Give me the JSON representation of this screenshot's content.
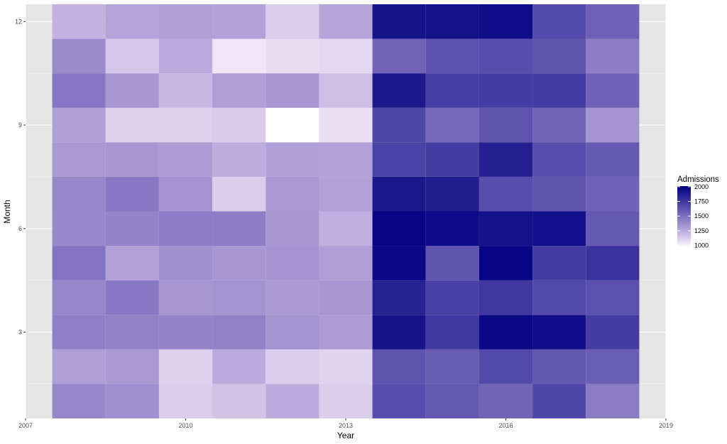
{
  "chart_data": {
    "type": "heatmap",
    "title": "",
    "xlabel": "Year",
    "ylabel": "Month",
    "x_ticks": [
      "2007",
      "2010",
      "2013",
      "2016",
      "2019"
    ],
    "y_ticks": [
      "3",
      "6",
      "9",
      "12"
    ],
    "xlim": [
      2007,
      2019
    ],
    "ylim": [
      0.5,
      12.5
    ],
    "grid": true,
    "legend": {
      "title": "Admissions",
      "position": "right",
      "breaks": [
        "2000",
        "1750",
        "1500",
        "1250",
        "1000"
      ],
      "range": [
        970,
        2010
      ],
      "low_color": "#ffffff",
      "high_color": "#000080"
    },
    "years": [
      2008,
      2009,
      2010,
      2011,
      2012,
      2013,
      2014,
      2015,
      2016,
      2017,
      2018
    ],
    "months": [
      1,
      2,
      3,
      4,
      5,
      6,
      7,
      8,
      9,
      10,
      11,
      12
    ],
    "values": [
      [
        1400,
        1300,
        1430,
        1400,
        1480,
        1390,
        1400,
        1320,
        1300,
        1470,
        1380,
        1220
      ],
      [
        1360,
        1320,
        1420,
        1460,
        1290,
        1410,
        1460,
        1330,
        1110,
        1330,
        1150,
        1280
      ],
      [
        1120,
        1110,
        1410,
        1330,
        1360,
        1440,
        1340,
        1310,
        1110,
        1200,
        1250,
        1300
      ],
      [
        1160,
        1250,
        1420,
        1350,
        1330,
        1440,
        1120,
        1240,
        1130,
        1300,
        1040,
        1290
      ],
      [
        1250,
        1120,
        1350,
        1320,
        1340,
        1330,
        1320,
        1300,
        970,
        1330,
        1070,
        1120
      ],
      [
        1120,
        1100,
        1310,
        1330,
        1300,
        1230,
        1290,
        1290,
        1060,
        1180,
        1080,
        1270
      ],
      [
        1650,
        1630,
        1920,
        1850,
        1970,
        1990,
        1900,
        1700,
        1680,
        1900,
        1550,
        1920
      ],
      [
        1600,
        1590,
        1750,
        1710,
        1620,
        1960,
        1870,
        1730,
        1530,
        1720,
        1640,
        1930
      ],
      [
        1550,
        1670,
        1970,
        1750,
        1980,
        1930,
        1650,
        1860,
        1620,
        1730,
        1650,
        1950
      ],
      [
        1680,
        1610,
        1950,
        1670,
        1730,
        1940,
        1620,
        1650,
        1550,
        1740,
        1630,
        1670
      ],
      [
        1450,
        1580,
        1730,
        1640,
        1770,
        1600,
        1560,
        1600,
        1340,
        1560,
        1440,
        1560
      ]
    ]
  }
}
